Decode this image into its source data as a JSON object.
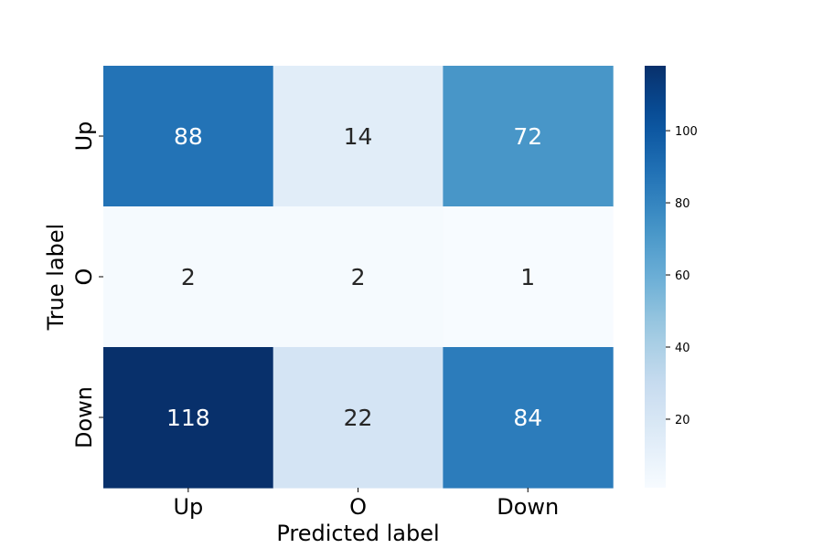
{
  "chart_data": {
    "type": "heatmap",
    "title": "",
    "xlabel": "Predicted label",
    "ylabel": "True label",
    "x_categories": [
      "Up",
      "O",
      "Down"
    ],
    "y_categories": [
      "Up",
      "O",
      "Down"
    ],
    "values": [
      [
        88,
        14,
        72
      ],
      [
        2,
        2,
        1
      ],
      [
        118,
        22,
        84
      ]
    ],
    "colormap": "Blues",
    "color_range": [
      1,
      118
    ],
    "colorbar_ticks": [
      20,
      40,
      60,
      80,
      100
    ],
    "colorbar_tick_labels": [
      "20",
      "40",
      "60",
      "80",
      "100"
    ],
    "grid": false
  }
}
